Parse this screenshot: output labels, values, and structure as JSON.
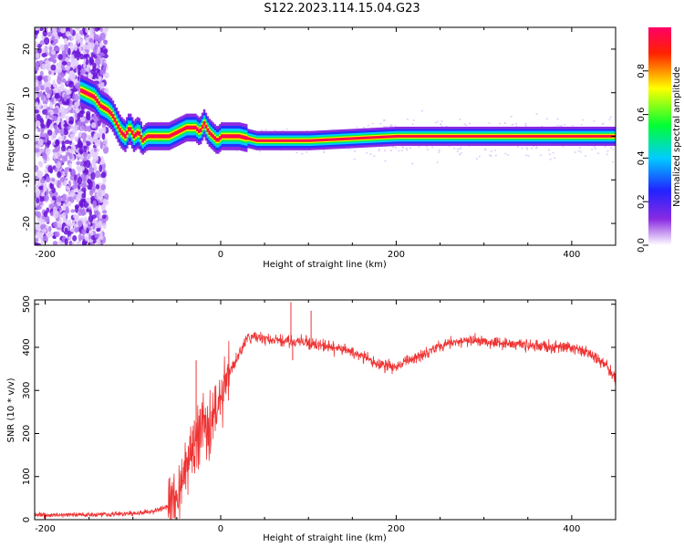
{
  "title": "S122.2023.114.15.04.G23",
  "chart_data": [
    {
      "type": "heatmap",
      "xlabel": "Height of straight line (km)",
      "ylabel": "Frequency (Hz)",
      "xlim": [
        -212,
        450
      ],
      "ylim": [
        -25,
        25
      ],
      "xticks": [
        -200,
        0,
        200,
        400
      ],
      "yticks": [
        -20,
        -10,
        0,
        10,
        20
      ],
      "colorbar": {
        "label": "Normalized spectral amplitude",
        "range": [
          0,
          1
        ],
        "ticks": [
          0.0,
          0.2,
          0.4,
          0.6,
          0.8
        ]
      },
      "ridge": {
        "x": [
          -165,
          -155,
          -145,
          -138,
          -130,
          -125,
          -120,
          -115,
          -110,
          -105,
          -100,
          -95,
          -90,
          -85,
          -80,
          -70,
          -60,
          -50,
          -40,
          -30,
          -25,
          -20,
          -15,
          -10,
          -5,
          0,
          10,
          20,
          40,
          60,
          80,
          100,
          150,
          200,
          250,
          300,
          350,
          400,
          450
        ],
        "y": [
          11,
          10,
          9,
          7,
          6,
          5,
          3,
          1,
          0,
          2,
          0,
          1,
          -1,
          0,
          0,
          0,
          0,
          1,
          2,
          2,
          1,
          3,
          1,
          0,
          -1,
          0,
          0,
          0,
          -1,
          -1,
          -1,
          -1,
          -0.5,
          0,
          0,
          0,
          0,
          0,
          0
        ]
      }
    },
    {
      "type": "line",
      "xlabel": "Height of straight line (km)",
      "ylabel": "SNR (10 * v/v)",
      "xlim": [
        -212,
        450
      ],
      "ylim": [
        0,
        510
      ],
      "xticks": [
        -200,
        0,
        200,
        400
      ],
      "yticks": [
        0,
        100,
        200,
        300,
        400,
        500
      ],
      "color": "#ee3333",
      "series": [
        {
          "x": [
            -212,
            -200,
            -150,
            -100,
            -80,
            -60,
            -50,
            -40,
            -30,
            -25,
            -20,
            -15,
            -10,
            -5,
            0,
            10,
            20,
            30,
            40,
            60,
            80,
            100,
            150,
            180,
            200,
            220,
            250,
            280,
            300,
            350,
            380,
            400,
            420,
            440,
            450
          ],
          "y": [
            10,
            10,
            12,
            14,
            18,
            30,
            60,
            110,
            170,
            200,
            240,
            220,
            230,
            250,
            290,
            340,
            380,
            420,
            425,
            415,
            415,
            410,
            390,
            360,
            355,
            375,
            405,
            415,
            415,
            405,
            400,
            400,
            385,
            360,
            320
          ]
        }
      ]
    }
  ]
}
